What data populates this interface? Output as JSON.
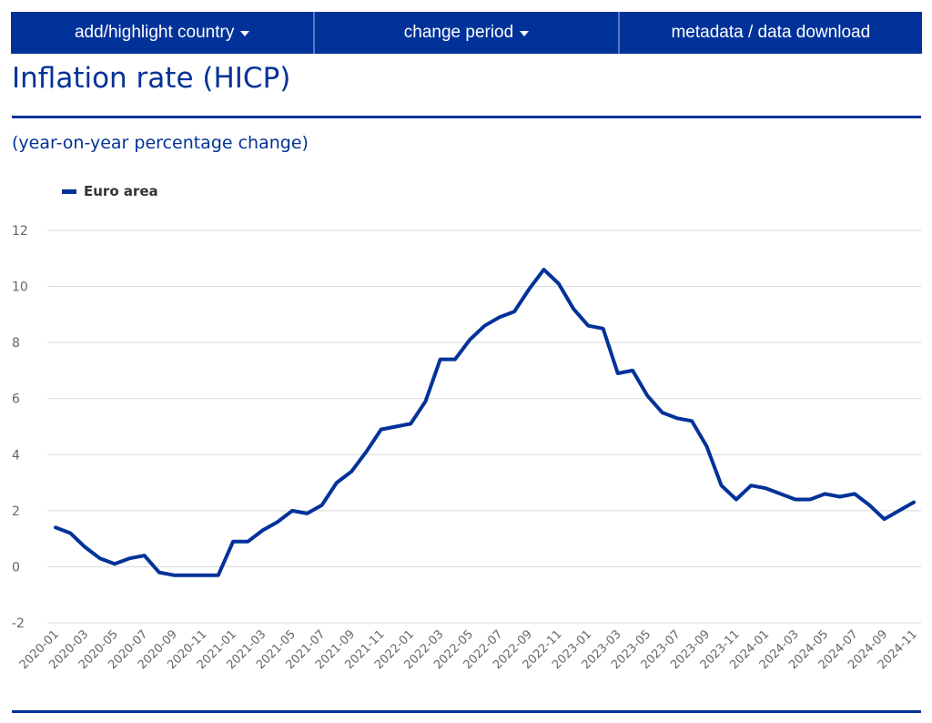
{
  "nav": {
    "items": [
      {
        "label": "add/highlight country",
        "dropdown": true
      },
      {
        "label": "change period",
        "dropdown": true
      },
      {
        "label": "metadata / data download",
        "dropdown": false
      }
    ]
  },
  "page": {
    "title": "Inflation rate (HICP)",
    "subtitle": "(year-on-year percentage change)"
  },
  "colors": {
    "primary": "#003299",
    "grid": "#d7d7d7",
    "axis_text": "#666666"
  },
  "chart_data": {
    "type": "line",
    "legend": {
      "position": "top-left"
    },
    "grid": true,
    "ylim": [
      -2,
      12
    ],
    "yticks": [
      -2,
      0,
      2,
      4,
      6,
      8,
      10,
      12
    ],
    "x": [
      "2020-01",
      "2020-02",
      "2020-03",
      "2020-04",
      "2020-05",
      "2020-06",
      "2020-07",
      "2020-08",
      "2020-09",
      "2020-10",
      "2020-11",
      "2020-12",
      "2021-01",
      "2021-02",
      "2021-03",
      "2021-04",
      "2021-05",
      "2021-06",
      "2021-07",
      "2021-08",
      "2021-09",
      "2021-10",
      "2021-11",
      "2021-12",
      "2022-01",
      "2022-02",
      "2022-03",
      "2022-04",
      "2022-05",
      "2022-06",
      "2022-07",
      "2022-08",
      "2022-09",
      "2022-10",
      "2022-11",
      "2022-12",
      "2023-01",
      "2023-02",
      "2023-03",
      "2023-04",
      "2023-05",
      "2023-06",
      "2023-07",
      "2023-08",
      "2023-09",
      "2023-10",
      "2023-11",
      "2023-12",
      "2024-01",
      "2024-02",
      "2024-03",
      "2024-04",
      "2024-05",
      "2024-06",
      "2024-07",
      "2024-08",
      "2024-09",
      "2024-10",
      "2024-11"
    ],
    "xtick_labels": [
      "2020-01",
      "2020-03",
      "2020-05",
      "2020-07",
      "2020-09",
      "2020-11",
      "2021-01",
      "2021-03",
      "2021-05",
      "2021-07",
      "2021-09",
      "2021-11",
      "2022-01",
      "2022-03",
      "2022-05",
      "2022-07",
      "2022-09",
      "2022-11",
      "2023-01",
      "2023-03",
      "2023-05",
      "2023-07",
      "2023-09",
      "2023-11",
      "2024-01",
      "2024-03",
      "2024-05",
      "2024-07",
      "2024-09",
      "2024-11"
    ],
    "series": [
      {
        "name": "Euro area",
        "color": "#003299",
        "values": [
          1.4,
          1.2,
          0.7,
          0.3,
          0.1,
          0.3,
          0.4,
          -0.2,
          -0.3,
          -0.3,
          -0.3,
          -0.3,
          0.9,
          0.9,
          1.3,
          1.6,
          2.0,
          1.9,
          2.2,
          3.0,
          3.4,
          4.1,
          4.9,
          5.0,
          5.1,
          5.9,
          7.4,
          7.4,
          8.1,
          8.6,
          8.9,
          9.1,
          9.9,
          10.6,
          10.1,
          9.2,
          8.6,
          8.5,
          6.9,
          7.0,
          6.1,
          5.5,
          5.3,
          5.2,
          4.3,
          2.9,
          2.4,
          2.9,
          2.8,
          2.6,
          2.4,
          2.4,
          2.6,
          2.5,
          2.6,
          2.2,
          1.7,
          2.0,
          2.3
        ]
      }
    ]
  }
}
